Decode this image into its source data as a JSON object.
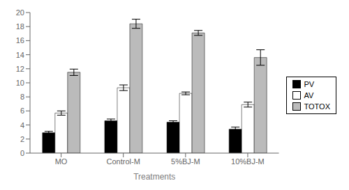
{
  "chart_data": {
    "type": "bar",
    "categories": [
      "MO",
      "Control-M",
      "5%BJ-M",
      "10%BJ-M"
    ],
    "series": [
      {
        "name": "PV",
        "color": "#000000",
        "values": [
          2.9,
          4.6,
          4.4,
          3.4
        ],
        "errors": [
          0.2,
          0.25,
          0.2,
          0.3
        ]
      },
      {
        "name": "AV",
        "color": "#ffffff",
        "values": [
          5.7,
          9.3,
          8.5,
          6.9
        ],
        "errors": [
          0.3,
          0.4,
          0.2,
          0.35
        ]
      },
      {
        "name": "TOTOX",
        "color": "#bbbbbb",
        "values": [
          11.5,
          18.4,
          17.1,
          13.6
        ],
        "errors": [
          0.45,
          0.65,
          0.35,
          1.1
        ]
      }
    ],
    "xlabel": "Treatments",
    "ylim": [
      0,
      20
    ],
    "yticks": [
      0,
      2,
      4,
      6,
      8,
      10,
      12,
      14,
      16,
      18,
      20
    ],
    "grid": false,
    "legend": "right"
  }
}
